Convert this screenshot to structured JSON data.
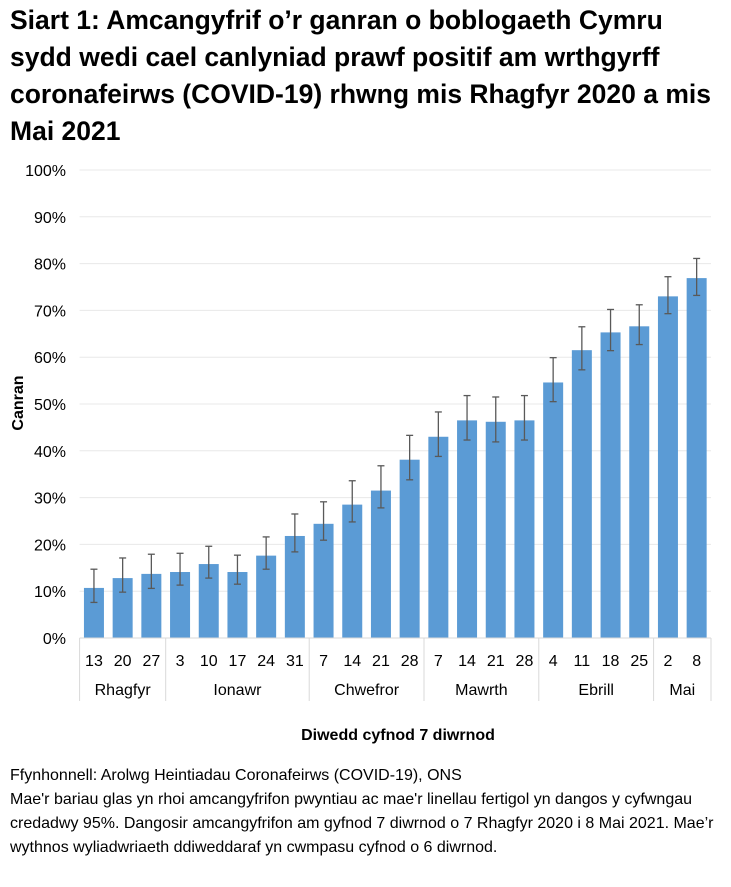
{
  "chart_data": {
    "type": "bar",
    "title": "Siart 1: Amcangyfrif o’r ganran o boblogaeth Cymru sydd wedi cael canlyniad prawf positif am wrthgyrff coronafeirws (COVID-19) rhwng mis Rhagfyr 2020 a mis Mai 2021",
    "xlabel": "Diwedd cyfnod 7 diwrnod",
    "ylabel": "Canran",
    "ylim": [
      0,
      100
    ],
    "yticks": [
      "0%",
      "10%",
      "20%",
      "30%",
      "40%",
      "50%",
      "60%",
      "70%",
      "80%",
      "90%",
      "100%"
    ],
    "grid": true,
    "bar_color": "#5b9bd5",
    "error_color": "#595959",
    "categories": [
      "13",
      "20",
      "27",
      "3",
      "10",
      "17",
      "24",
      "31",
      "7",
      "14",
      "21",
      "28",
      "7",
      "14",
      "21",
      "28",
      "4",
      "11",
      "18",
      "25",
      "2",
      "8"
    ],
    "month_groups": [
      {
        "label": "Rhagfyr",
        "count": 3
      },
      {
        "label": "Ionawr",
        "count": 5
      },
      {
        "label": "Chwefror",
        "count": 4
      },
      {
        "label": "Mawrth",
        "count": 4
      },
      {
        "label": "Ebrill",
        "count": 4
      },
      {
        "label": "Mai",
        "count": 2
      }
    ],
    "values": [
      10.7,
      12.8,
      13.7,
      14.1,
      15.8,
      14.1,
      17.6,
      21.8,
      24.4,
      28.5,
      31.5,
      38.1,
      43.0,
      46.5,
      46.2,
      46.5,
      54.6,
      61.5,
      65.3,
      66.6,
      73.0,
      76.9
    ],
    "ci_lower": [
      7.6,
      9.8,
      10.6,
      11.3,
      12.8,
      11.5,
      14.7,
      18.4,
      20.9,
      24.8,
      27.8,
      33.8,
      38.8,
      42.3,
      41.9,
      42.3,
      50.5,
      57.3,
      61.4,
      62.7,
      69.3,
      73.2
    ],
    "ci_upper": [
      14.7,
      17.1,
      17.9,
      18.1,
      19.6,
      17.7,
      21.6,
      26.5,
      29.1,
      33.6,
      36.8,
      43.3,
      48.3,
      51.8,
      51.5,
      51.8,
      59.9,
      66.5,
      70.2,
      71.2,
      77.2,
      81.1
    ]
  },
  "notes": {
    "source": "Ffynhonnell: Arolwg Heintiadau Coronafeirws (COVID-19), ONS",
    "description": "Mae'r bariau glas yn rhoi amcangyfrifon pwyntiau ac mae'r linellau fertigol yn dangos y cyfwngau credadwy 95%. Dangosir amcangyfrifon am gyfnod 7 diwrnod o 7 Rhagfyr 2020 i 8 Mai 2021. Mae’r wythnos wyliadwriaeth ddiweddaraf yn cwmpasu cyfnod o 6 diwrnod."
  }
}
